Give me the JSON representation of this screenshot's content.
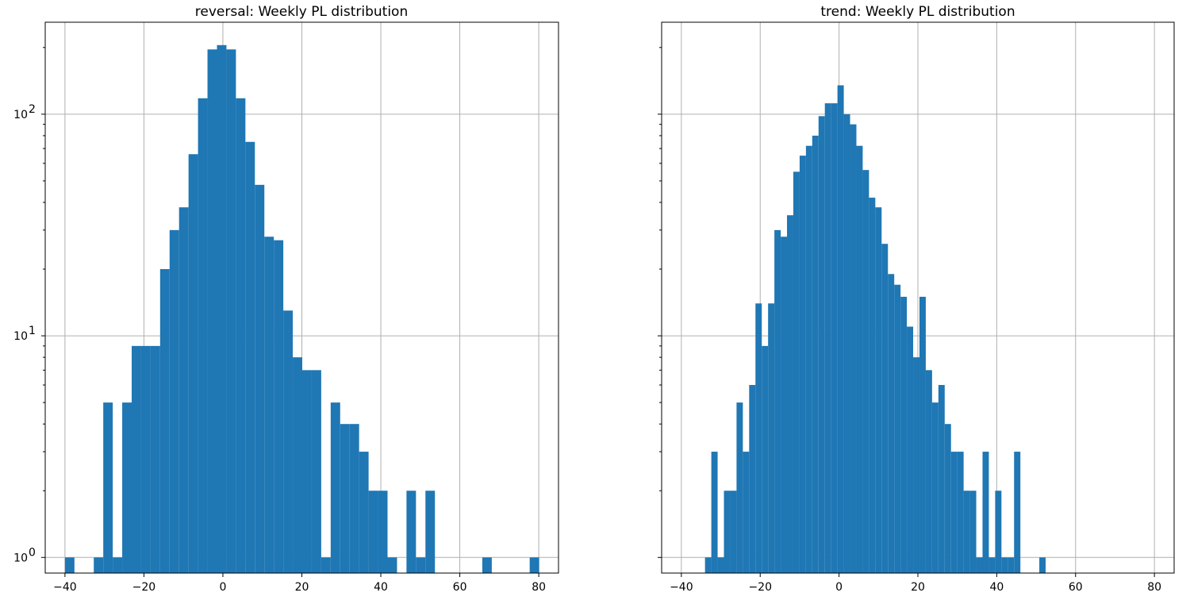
{
  "chart_data": [
    {
      "type": "bar",
      "title": "reversal: Weekly PL distribution",
      "xlabel": "",
      "ylabel": "",
      "yscale": "log",
      "grid": true,
      "xlim": [
        -45,
        85
      ],
      "ylim": [
        0.85,
        260
      ],
      "xticks": [
        -40,
        -20,
        0,
        20,
        40,
        60,
        80
      ],
      "xtick_labels": [
        "−40",
        "−20",
        "0",
        "20",
        "40",
        "60",
        "80"
      ],
      "yticks": [
        1,
        10,
        100
      ],
      "ytick_labels": [
        {
          "base": "10",
          "exp": "0"
        },
        {
          "base": "10",
          "exp": "1"
        },
        {
          "base": "10",
          "exp": "2"
        }
      ],
      "bins": [
        {
          "x0": -40.0,
          "x1": -37.6,
          "count": 1
        },
        {
          "x0": -32.7,
          "x1": -30.3,
          "count": 1
        },
        {
          "x0": -30.3,
          "x1": -27.9,
          "count": 5
        },
        {
          "x0": -27.9,
          "x1": -25.5,
          "count": 1
        },
        {
          "x0": -25.5,
          "x1": -23.1,
          "count": 5
        },
        {
          "x0": -23.1,
          "x1": -20.7,
          "count": 9
        },
        {
          "x0": -20.7,
          "x1": -18.3,
          "count": 9
        },
        {
          "x0": -18.3,
          "x1": -15.9,
          "count": 9
        },
        {
          "x0": -15.9,
          "x1": -13.5,
          "count": 20
        },
        {
          "x0": -13.5,
          "x1": -11.1,
          "count": 30
        },
        {
          "x0": -11.1,
          "x1": -8.7,
          "count": 38
        },
        {
          "x0": -8.7,
          "x1": -6.3,
          "count": 66
        },
        {
          "x0": -6.3,
          "x1": -3.9,
          "count": 118
        },
        {
          "x0": -3.9,
          "x1": -1.5,
          "count": 196
        },
        {
          "x0": -1.5,
          "x1": 0.9,
          "count": 205
        },
        {
          "x0": 0.9,
          "x1": 3.3,
          "count": 196
        },
        {
          "x0": 3.3,
          "x1": 5.7,
          "count": 118
        },
        {
          "x0": 5.7,
          "x1": 8.1,
          "count": 75
        },
        {
          "x0": 8.1,
          "x1": 10.5,
          "count": 48
        },
        {
          "x0": 10.5,
          "x1": 12.9,
          "count": 28
        },
        {
          "x0": 12.9,
          "x1": 15.3,
          "count": 27
        },
        {
          "x0": 15.3,
          "x1": 17.7,
          "count": 13
        },
        {
          "x0": 17.7,
          "x1": 20.1,
          "count": 8
        },
        {
          "x0": 20.1,
          "x1": 22.5,
          "count": 7
        },
        {
          "x0": 22.5,
          "x1": 24.9,
          "count": 7
        },
        {
          "x0": 24.9,
          "x1": 27.3,
          "count": 1
        },
        {
          "x0": 27.3,
          "x1": 29.7,
          "count": 5
        },
        {
          "x0": 29.7,
          "x1": 32.1,
          "count": 4
        },
        {
          "x0": 32.1,
          "x1": 34.5,
          "count": 4
        },
        {
          "x0": 34.5,
          "x1": 36.9,
          "count": 3
        },
        {
          "x0": 36.9,
          "x1": 39.3,
          "count": 2
        },
        {
          "x0": 39.3,
          "x1": 41.7,
          "count": 2
        },
        {
          "x0": 41.7,
          "x1": 44.1,
          "count": 1
        },
        {
          "x0": 46.5,
          "x1": 48.9,
          "count": 2
        },
        {
          "x0": 48.9,
          "x1": 51.3,
          "count": 1
        },
        {
          "x0": 51.3,
          "x1": 53.7,
          "count": 2
        },
        {
          "x0": 65.7,
          "x1": 68.1,
          "count": 1
        },
        {
          "x0": 77.7,
          "x1": 80.1,
          "count": 1
        }
      ]
    },
    {
      "type": "bar",
      "title": "trend: Weekly PL distribution",
      "xlabel": "",
      "ylabel": "",
      "yscale": "log",
      "grid": true,
      "xlim": [
        -45,
        85
      ],
      "ylim": [
        0.85,
        260
      ],
      "xticks": [
        -40,
        -20,
        0,
        20,
        40,
        60,
        80
      ],
      "xtick_labels": [
        "−40",
        "−20",
        "0",
        "20",
        "40",
        "60",
        "80"
      ],
      "yticks": [
        1,
        10,
        100
      ],
      "ytick_labels": [
        "",
        "",
        ""
      ],
      "bins": [
        {
          "x0": -34.0,
          "x1": -32.4,
          "count": 1
        },
        {
          "x0": -32.4,
          "x1": -30.8,
          "count": 3
        },
        {
          "x0": -30.8,
          "x1": -29.2,
          "count": 1
        },
        {
          "x0": -29.2,
          "x1": -27.6,
          "count": 2
        },
        {
          "x0": -27.6,
          "x1": -26.0,
          "count": 2
        },
        {
          "x0": -26.0,
          "x1": -24.4,
          "count": 5
        },
        {
          "x0": -24.4,
          "x1": -22.8,
          "count": 3
        },
        {
          "x0": -22.8,
          "x1": -21.2,
          "count": 6
        },
        {
          "x0": -21.2,
          "x1": -19.6,
          "count": 14
        },
        {
          "x0": -19.6,
          "x1": -18.0,
          "count": 9
        },
        {
          "x0": -18.0,
          "x1": -16.4,
          "count": 14
        },
        {
          "x0": -16.4,
          "x1": -14.8,
          "count": 30
        },
        {
          "x0": -14.8,
          "x1": -13.2,
          "count": 28
        },
        {
          "x0": -13.2,
          "x1": -11.6,
          "count": 35
        },
        {
          "x0": -11.6,
          "x1": -10.0,
          "count": 55
        },
        {
          "x0": -10.0,
          "x1": -8.4,
          "count": 65
        },
        {
          "x0": -8.4,
          "x1": -6.8,
          "count": 72
        },
        {
          "x0": -6.8,
          "x1": -5.2,
          "count": 80
        },
        {
          "x0": -5.2,
          "x1": -3.6,
          "count": 98
        },
        {
          "x0": -3.6,
          "x1": -2.0,
          "count": 112
        },
        {
          "x0": -2.0,
          "x1": -0.4,
          "count": 112
        },
        {
          "x0": -0.4,
          "x1": 1.2,
          "count": 135
        },
        {
          "x0": 1.2,
          "x1": 2.8,
          "count": 100
        },
        {
          "x0": 2.8,
          "x1": 4.4,
          "count": 90
        },
        {
          "x0": 4.4,
          "x1": 6.0,
          "count": 72
        },
        {
          "x0": 6.0,
          "x1": 7.6,
          "count": 56
        },
        {
          "x0": 7.6,
          "x1": 9.2,
          "count": 42
        },
        {
          "x0": 9.2,
          "x1": 10.8,
          "count": 38
        },
        {
          "x0": 10.8,
          "x1": 12.4,
          "count": 26
        },
        {
          "x0": 12.4,
          "x1": 14.0,
          "count": 19
        },
        {
          "x0": 14.0,
          "x1": 15.6,
          "count": 17
        },
        {
          "x0": 15.6,
          "x1": 17.2,
          "count": 15
        },
        {
          "x0": 17.2,
          "x1": 18.8,
          "count": 11
        },
        {
          "x0": 18.8,
          "x1": 20.4,
          "count": 8
        },
        {
          "x0": 20.4,
          "x1": 22.0,
          "count": 15
        },
        {
          "x0": 22.0,
          "x1": 23.6,
          "count": 7
        },
        {
          "x0": 23.6,
          "x1": 25.2,
          "count": 5
        },
        {
          "x0": 25.2,
          "x1": 26.8,
          "count": 6
        },
        {
          "x0": 26.8,
          "x1": 28.4,
          "count": 4
        },
        {
          "x0": 28.4,
          "x1": 30.0,
          "count": 3
        },
        {
          "x0": 30.0,
          "x1": 31.6,
          "count": 3
        },
        {
          "x0": 31.6,
          "x1": 33.2,
          "count": 2
        },
        {
          "x0": 33.2,
          "x1": 34.8,
          "count": 2
        },
        {
          "x0": 34.8,
          "x1": 36.4,
          "count": 1
        },
        {
          "x0": 36.4,
          "x1": 38.0,
          "count": 3
        },
        {
          "x0": 38.0,
          "x1": 39.6,
          "count": 1
        },
        {
          "x0": 39.6,
          "x1": 41.2,
          "count": 2
        },
        {
          "x0": 41.2,
          "x1": 42.8,
          "count": 1
        },
        {
          "x0": 42.8,
          "x1": 44.4,
          "count": 1
        },
        {
          "x0": 44.4,
          "x1": 46.0,
          "count": 3
        },
        {
          "x0": 50.8,
          "x1": 52.4,
          "count": 1
        }
      ]
    }
  ],
  "colors": {
    "bar": "#1f77b4",
    "grid": "#b0b0b0",
    "axis": "#000000"
  }
}
